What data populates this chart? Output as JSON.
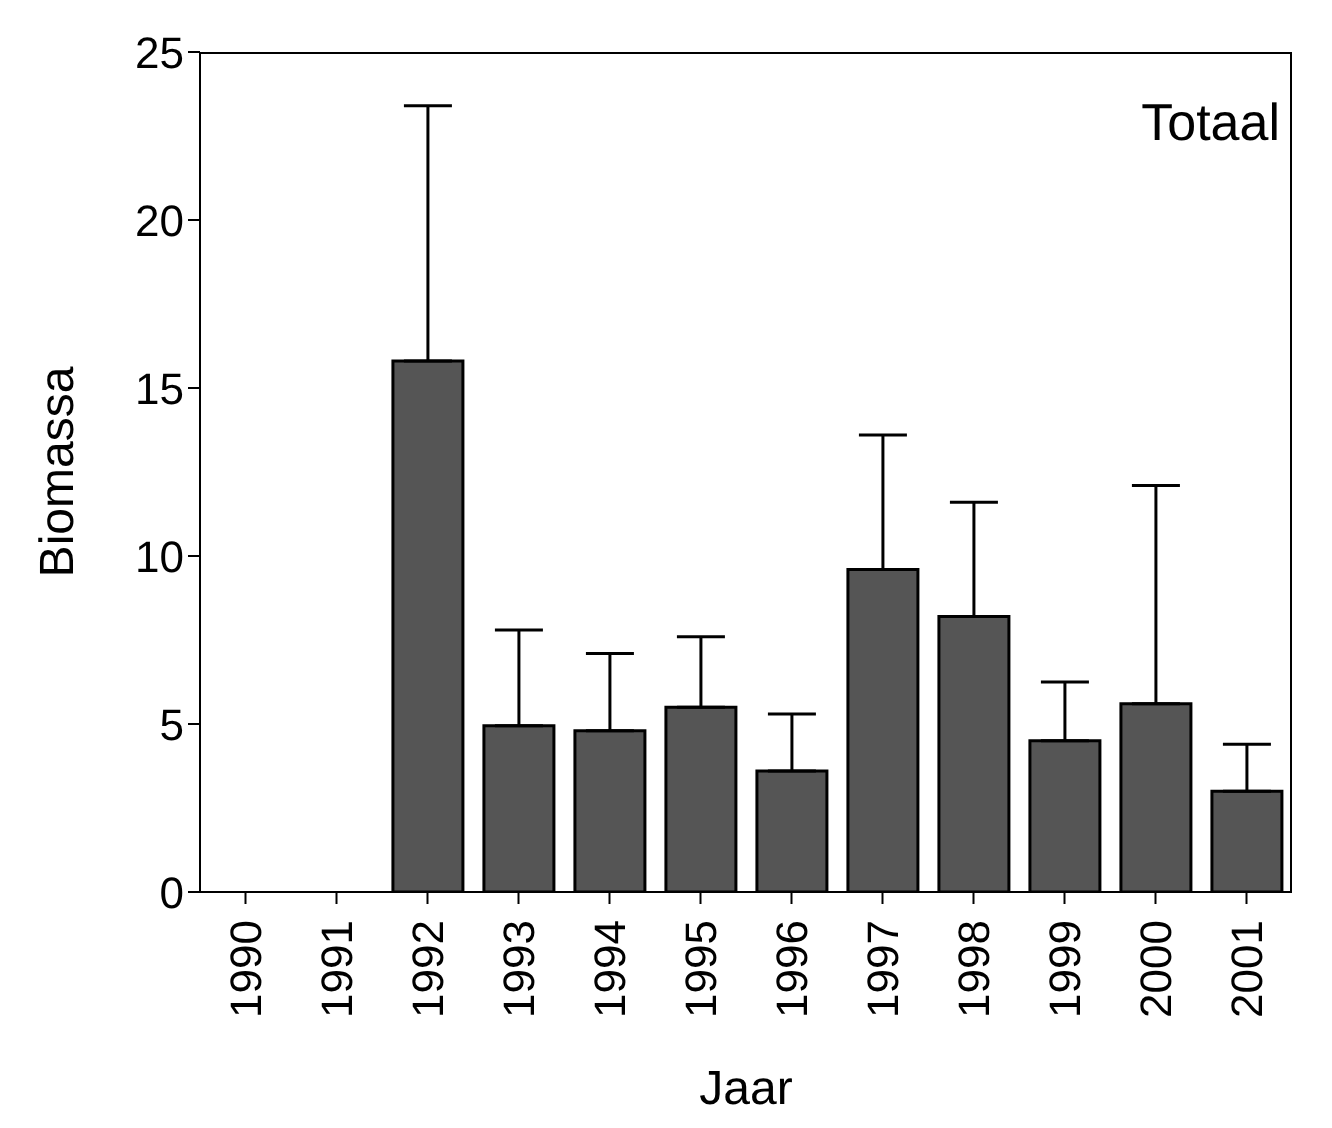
{
  "chart_data": {
    "type": "bar",
    "xlabel": "Jaar",
    "ylabel": "Biomassa",
    "annotations": [
      "Totaal"
    ],
    "categories": [
      "1990",
      "1991",
      "1992",
      "1993",
      "1994",
      "1995",
      "1996",
      "1997",
      "1998",
      "1999",
      "2000",
      "2001"
    ],
    "values": [
      null,
      null,
      15.8,
      4.95,
      4.8,
      5.5,
      3.6,
      9.6,
      8.2,
      4.5,
      5.6,
      3.0
    ],
    "errors": [
      null,
      null,
      [
        15.8,
        23.4
      ],
      [
        4.95,
        7.8
      ],
      [
        4.8,
        7.1
      ],
      [
        5.5,
        7.6
      ],
      [
        3.6,
        5.3
      ],
      [
        9.6,
        13.6
      ],
      [
        8.2,
        11.6
      ],
      [
        4.5,
        6.25
      ],
      [
        5.6,
        12.1
      ],
      [
        3.0,
        4.4
      ]
    ],
    "color": "#555555",
    "ylim": [
      0,
      25
    ],
    "yticks": [
      0,
      5,
      10,
      15,
      20,
      25
    ],
    "grid": false,
    "legend": false
  }
}
